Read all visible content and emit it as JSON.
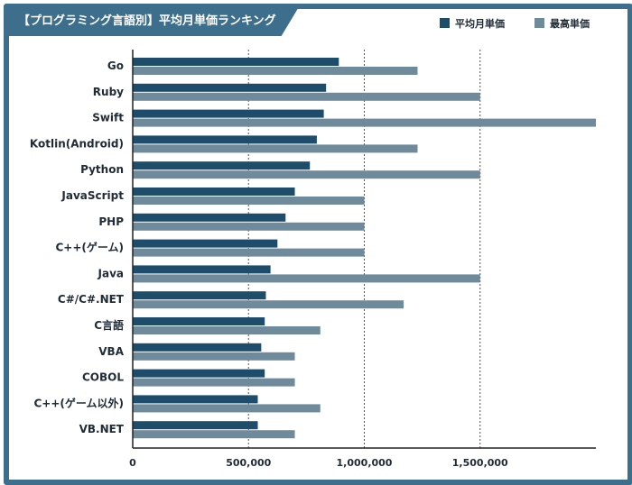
{
  "title": "【プログラミング言語別】平均月単価ランキング",
  "colors": {
    "frame": "#3d6f8c",
    "avg": "#1e4d6b",
    "max": "#6f8b9b",
    "grid": "#555555"
  },
  "chart_data": {
    "type": "bar",
    "orientation": "horizontal",
    "categories": [
      "Go",
      "Ruby",
      "Swift",
      "Kotlin(Android)",
      "Python",
      "JavaScript",
      "PHP",
      "C++(ゲーム)",
      "Java",
      "C#/C#.NET",
      "C言語",
      "VBA",
      "COBOL",
      "C++(ゲーム以外)",
      "VB.NET"
    ],
    "series": [
      {
        "name": "平均月単価",
        "color": "#1e4d6b",
        "values": [
          890000,
          835000,
          825000,
          795000,
          765000,
          700000,
          660000,
          625000,
          595000,
          575000,
          570000,
          555000,
          570000,
          540000,
          540000
        ]
      },
      {
        "name": "最高単価",
        "color": "#6f8b9b",
        "values": [
          1230000,
          1500000,
          2000000,
          1230000,
          1500000,
          1000000,
          1000000,
          1000000,
          1500000,
          1170000,
          810000,
          700000,
          700000,
          810000,
          700000
        ]
      }
    ],
    "xlim": [
      0,
      2000000
    ],
    "x_ticks": [
      0,
      500000,
      1000000,
      1500000
    ],
    "x_tick_labels": [
      "0",
      "500,000",
      "1,000,000",
      "1,500,000"
    ],
    "grid": "vertical dotted",
    "legend": "top-right"
  }
}
